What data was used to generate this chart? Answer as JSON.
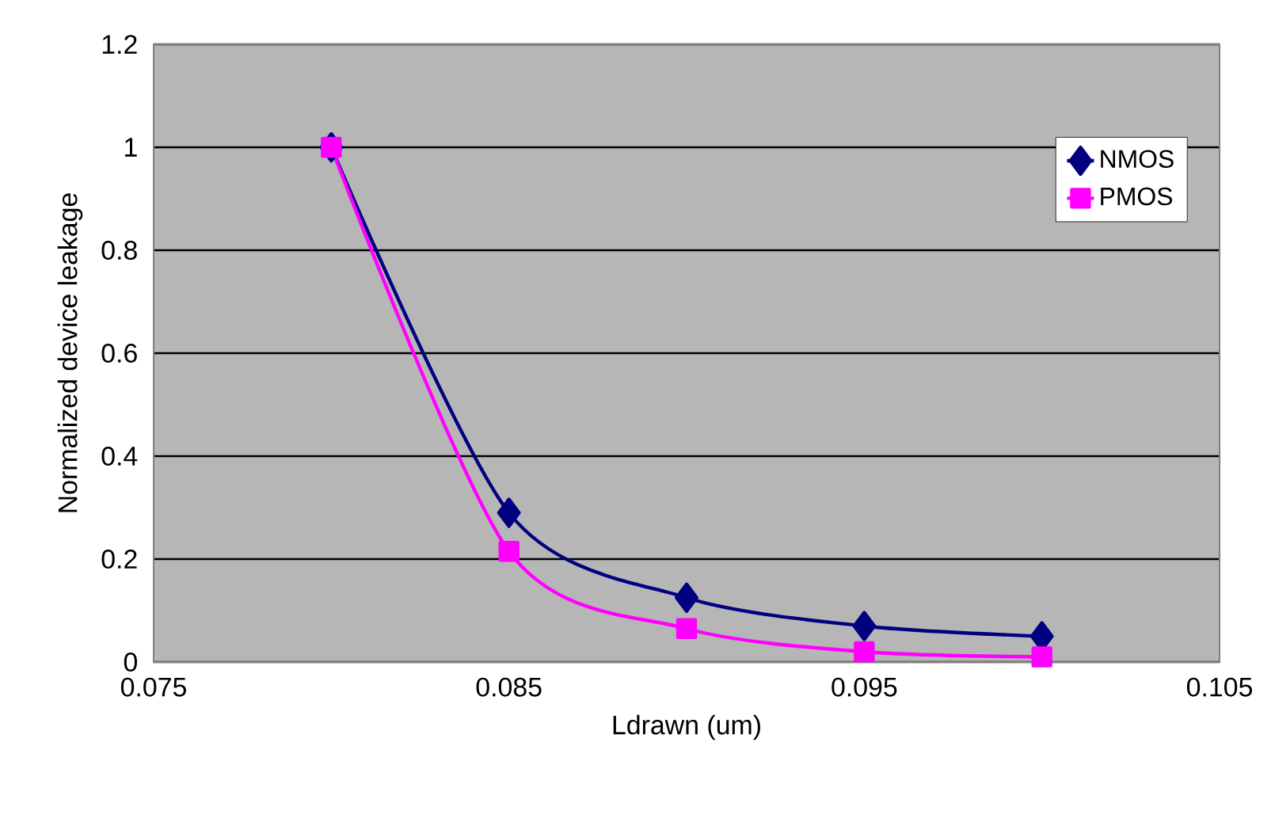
{
  "chart_data": {
    "type": "line",
    "xlabel": "Ldrawn (um)",
    "ylabel": "Normalized device leakage",
    "x": [
      0.08,
      0.085,
      0.09,
      0.095,
      0.1
    ],
    "series": [
      {
        "name": "NMOS",
        "color": "#000080",
        "marker": "diamond",
        "values": [
          1,
          0.29,
          0.125,
          0.07,
          0.05
        ]
      },
      {
        "name": "PMOS",
        "color": "#ff00ff",
        "marker": "square",
        "values": [
          1,
          0.215,
          0.065,
          0.02,
          0.01
        ]
      }
    ],
    "xlim": [
      0.075,
      0.105
    ],
    "xticks": [
      0.075,
      0.085,
      0.095,
      0.105
    ],
    "ylim": [
      0,
      1.2
    ],
    "yticks": [
      0,
      0.2,
      0.4,
      0.6,
      0.8,
      1,
      1.2
    ],
    "grid": "y",
    "legend": "top right"
  }
}
